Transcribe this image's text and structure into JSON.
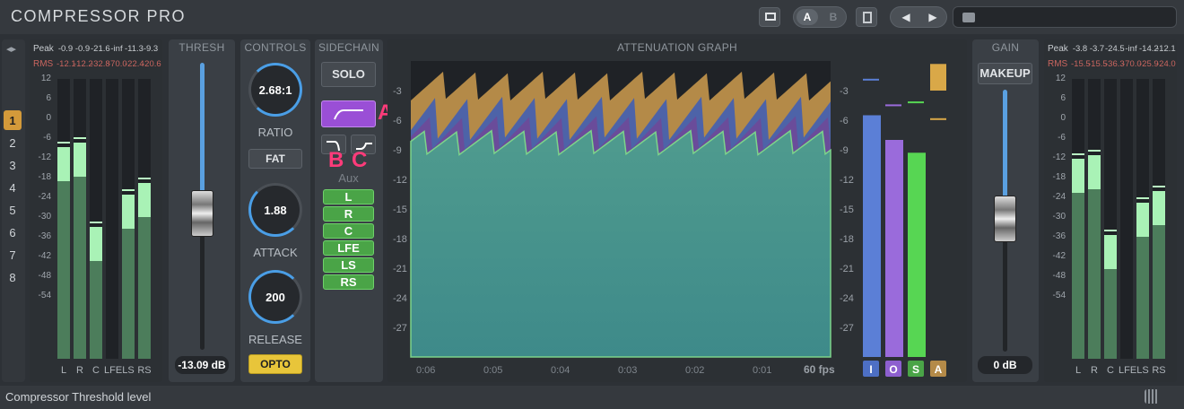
{
  "app": {
    "title": "COMPRESSOR PRO"
  },
  "toolbar": {
    "a_label": "A",
    "b_label": "B",
    "preset_path": ""
  },
  "layers": [
    "1",
    "2",
    "3",
    "4",
    "5",
    "6",
    "7",
    "8"
  ],
  "input_meter": {
    "peak_label": "Peak",
    "peak_values": [
      "-0.9",
      "-0.9",
      "-21.6",
      "-inf",
      "-11.3",
      "-9.3"
    ],
    "rms_label": "RMS",
    "rms_values": [
      "-12.1",
      "-12.2",
      "-32.8",
      "-70.0",
      "-22.4",
      "-20.6"
    ],
    "ticks": [
      "12",
      "6",
      "0",
      "-6",
      "-12",
      "-18",
      "-24",
      "-30",
      "-36",
      "-42",
      "-48",
      "-54"
    ],
    "channels": [
      "L",
      "R",
      "C",
      "LFE",
      "LS",
      "RS"
    ],
    "levels_db": [
      -5,
      -4,
      -25,
      -70,
      -17,
      -14
    ]
  },
  "thresh": {
    "header": "THRESH",
    "value": "-13.09 dB"
  },
  "controls": {
    "header": "CONTROLS",
    "ratio_value": "2.68:1",
    "ratio_label": "RATIO",
    "fat_label": "FAT",
    "attack_value": "1.88",
    "attack_label": "ATTACK",
    "release_value": "200",
    "release_label": "RELEASE",
    "opto_label": "OPTO"
  },
  "sidechain": {
    "header": "SIDECHAIN",
    "solo_label": "SOLO",
    "aux_label": "Aux",
    "filter_a": "A",
    "filter_b": "B",
    "filter_c": "C",
    "channels": [
      "L",
      "R",
      "C",
      "LFE",
      "LS",
      "RS"
    ]
  },
  "graph": {
    "header": "ATTENUATION GRAPH",
    "ticks": [
      "-3",
      "-6",
      "-9",
      "-12",
      "-15",
      "-18",
      "-21",
      "-24",
      "-27"
    ],
    "times": [
      "0:06",
      "0:05",
      "0:04",
      "0:03",
      "0:02",
      "0:01"
    ],
    "fps": "60 fps",
    "legend": [
      "I",
      "O",
      "S",
      "A"
    ],
    "colors": {
      "I": "#5b7fd6",
      "O": "#9a6bdb",
      "S": "#57d653",
      "A": "#d9a848"
    }
  },
  "gain": {
    "header": "GAIN",
    "makeup_label": "MAKEUP",
    "value": "0 dB"
  },
  "output_meter": {
    "peak_label": "Peak",
    "peak_values": [
      "-3.8",
      "-3.7",
      "-24.5",
      "-inf",
      "-14.2",
      "-12.1"
    ],
    "rms_label": "RMS",
    "rms_values": [
      "-15.5",
      "-15.5",
      "-36.3",
      "-70.0",
      "-25.9",
      "-24.0"
    ],
    "ticks": [
      "12",
      "6",
      "0",
      "-6",
      "-12",
      "-18",
      "-24",
      "-30",
      "-36",
      "-42",
      "-48",
      "-54"
    ],
    "channels": [
      "L",
      "R",
      "C",
      "LFE",
      "LS",
      "RS"
    ],
    "levels_db": [
      -8,
      -7,
      -27,
      -70,
      -19,
      -16
    ]
  },
  "status": {
    "text": "Compressor Threshold level"
  }
}
